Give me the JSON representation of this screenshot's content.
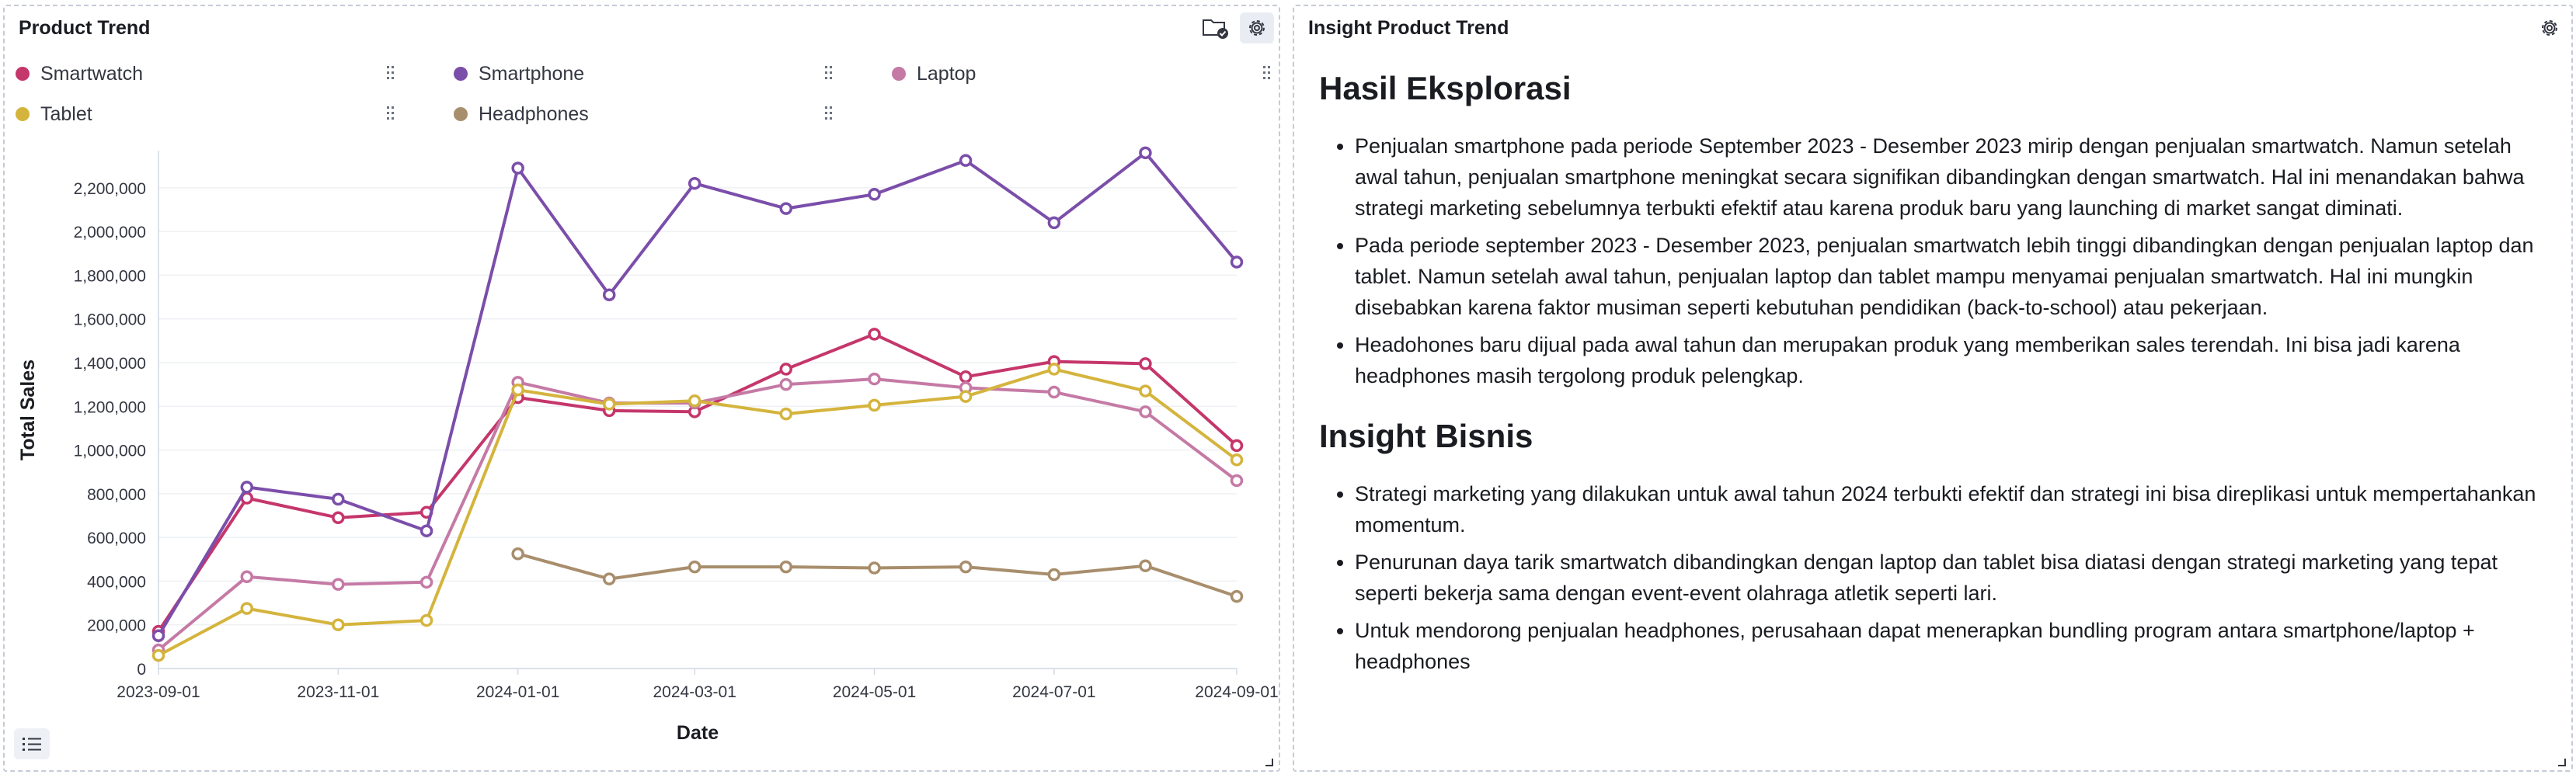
{
  "left_panel": {
    "title": "Product Trend",
    "icons": [
      "folder-check-icon",
      "gear-icon",
      "list-icon"
    ]
  },
  "right_panel": {
    "title": "Insight Product Trend",
    "sections": [
      {
        "heading": "Hasil Eksplorasi",
        "bullets": [
          "Penjualan smartphone pada periode September 2023 - Desember 2023 mirip dengan penjualan smartwatch. Namun setelah awal tahun, penjualan smartphone meningkat secara signifikan dibandingkan dengan smartwatch. Hal ini menandakan bahwa strategi marketing sebelumnya terbukti efektif atau karena produk baru yang launching di market sangat diminati.",
          "Pada periode september 2023 - Desember 2023, penjualan smartwatch lebih tinggi dibandingkan dengan penjualan laptop dan tablet. Namun setelah awal tahun, penjualan laptop dan tablet mampu menyamai penjualan smartwatch. Hal ini mungkin disebabkan karena faktor musiman seperti kebutuhan pendidikan (back-to-school) atau pekerjaan.",
          "Headohones baru dijual pada awal tahun dan merupakan produk yang memberikan sales terendah. Ini bisa jadi karena headphones masih tergolong produk pelengkap."
        ]
      },
      {
        "heading": "Insight Bisnis",
        "bullets": [
          "Strategi marketing yang dilakukan untuk awal tahun 2024 terbukti efektif dan strategi ini bisa direplikasi untuk mempertahankan momentum.",
          "Penurunan daya tarik smartwatch dibandingkan dengan laptop dan tablet bisa diatasi dengan strategi marketing yang tepat seperti bekerja sama dengan event-event olahraga atletik seperti lari.",
          "Untuk mendorong penjualan headphones, perusahaan dapat menerapkan bundling program antara smartphone/laptop + headphones"
        ]
      }
    ]
  },
  "chart_data": {
    "type": "line",
    "title": "",
    "xlabel": "Date",
    "ylabel": "Total Sales",
    "x": [
      "2023-09-01",
      "2023-10-01",
      "2023-11-01",
      "2023-12-01",
      "2024-01-01",
      "2024-02-01",
      "2024-03-01",
      "2024-04-01",
      "2024-05-01",
      "2024-06-01",
      "2024-07-01",
      "2024-08-01",
      "2024-09-01"
    ],
    "x_ticks": [
      "2023-09-01",
      "2023-11-01",
      "2024-01-01",
      "2024-03-01",
      "2024-05-01",
      "2024-07-01",
      "2024-09-01"
    ],
    "y_ticks": [
      0,
      200000,
      400000,
      600000,
      800000,
      1000000,
      1200000,
      1400000,
      1600000,
      1800000,
      2000000,
      2200000
    ],
    "y_tick_labels": [
      "0",
      "200,000",
      "400,000",
      "600,000",
      "800,000",
      "1,000,000",
      "1,200,000",
      "1,400,000",
      "1,600,000",
      "1,800,000",
      "2,000,000",
      "2,200,000"
    ],
    "ylim": [
      0,
      2370000
    ],
    "grid": "horizontal",
    "legend_position": "top",
    "series": [
      {
        "name": "Smartwatch",
        "color": "#c5366b",
        "values": [
          170000,
          780000,
          690000,
          715000,
          1240000,
          1180000,
          1175000,
          1370000,
          1530000,
          1335000,
          1405000,
          1395000,
          1020000
        ]
      },
      {
        "name": "Smartphone",
        "color": "#7b4eaa",
        "values": [
          150000,
          830000,
          775000,
          630000,
          2290000,
          1710000,
          2220000,
          2105000,
          2170000,
          2325000,
          2040000,
          2360000,
          1860000
        ]
      },
      {
        "name": "Laptop",
        "color": "#c57aa5",
        "values": [
          85000,
          420000,
          385000,
          395000,
          1310000,
          1215000,
          1215000,
          1300000,
          1325000,
          1285000,
          1265000,
          1175000,
          860000
        ]
      },
      {
        "name": "Tablet",
        "color": "#d4b43d",
        "values": [
          60000,
          275000,
          200000,
          220000,
          1275000,
          1210000,
          1225000,
          1165000,
          1205000,
          1245000,
          1370000,
          1270000,
          955000
        ]
      },
      {
        "name": "Headphones",
        "color": "#a88e6c",
        "values": [
          null,
          null,
          null,
          null,
          525000,
          410000,
          465000,
          465000,
          460000,
          465000,
          430000,
          470000,
          330000
        ]
      }
    ]
  }
}
